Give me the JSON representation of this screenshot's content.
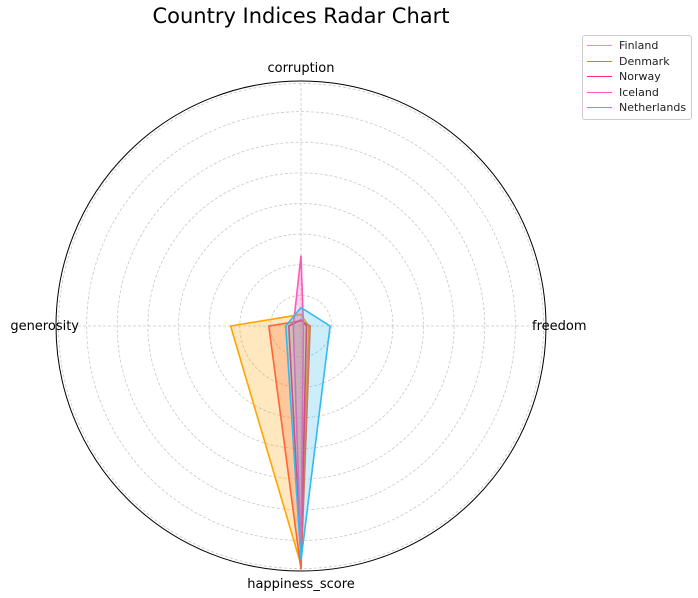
{
  "chart_data": {
    "type": "radar",
    "title": "Country Indices Radar Chart",
    "axes": [
      "corruption",
      "freedom",
      "happiness_score",
      "generosity"
    ],
    "rlim": [
      0,
      8
    ],
    "grid": true,
    "legend_position": "top-right outside",
    "series": [
      {
        "name": "Finland",
        "color": "#FFA500",
        "fill": true,
        "values": [
          0.38,
          0.25,
          7.8,
          2.3
        ]
      },
      {
        "name": "Denmark",
        "color": "#FF6433",
        "fill": true,
        "values": [
          0.17,
          0.3,
          7.95,
          1.05
        ]
      },
      {
        "name": "Norway",
        "color": "#FF2E63",
        "fill": false,
        "values": [
          0.2,
          0.18,
          7.6,
          0.4
        ]
      },
      {
        "name": "Iceland",
        "color": "#FF59B8",
        "fill": true,
        "values": [
          2.3,
          0.08,
          7.5,
          0.25
        ]
      },
      {
        "name": "Netherlands",
        "color": "#33BBEE",
        "fill": true,
        "values": [
          0.6,
          0.95,
          7.65,
          0.5
        ]
      }
    ]
  }
}
